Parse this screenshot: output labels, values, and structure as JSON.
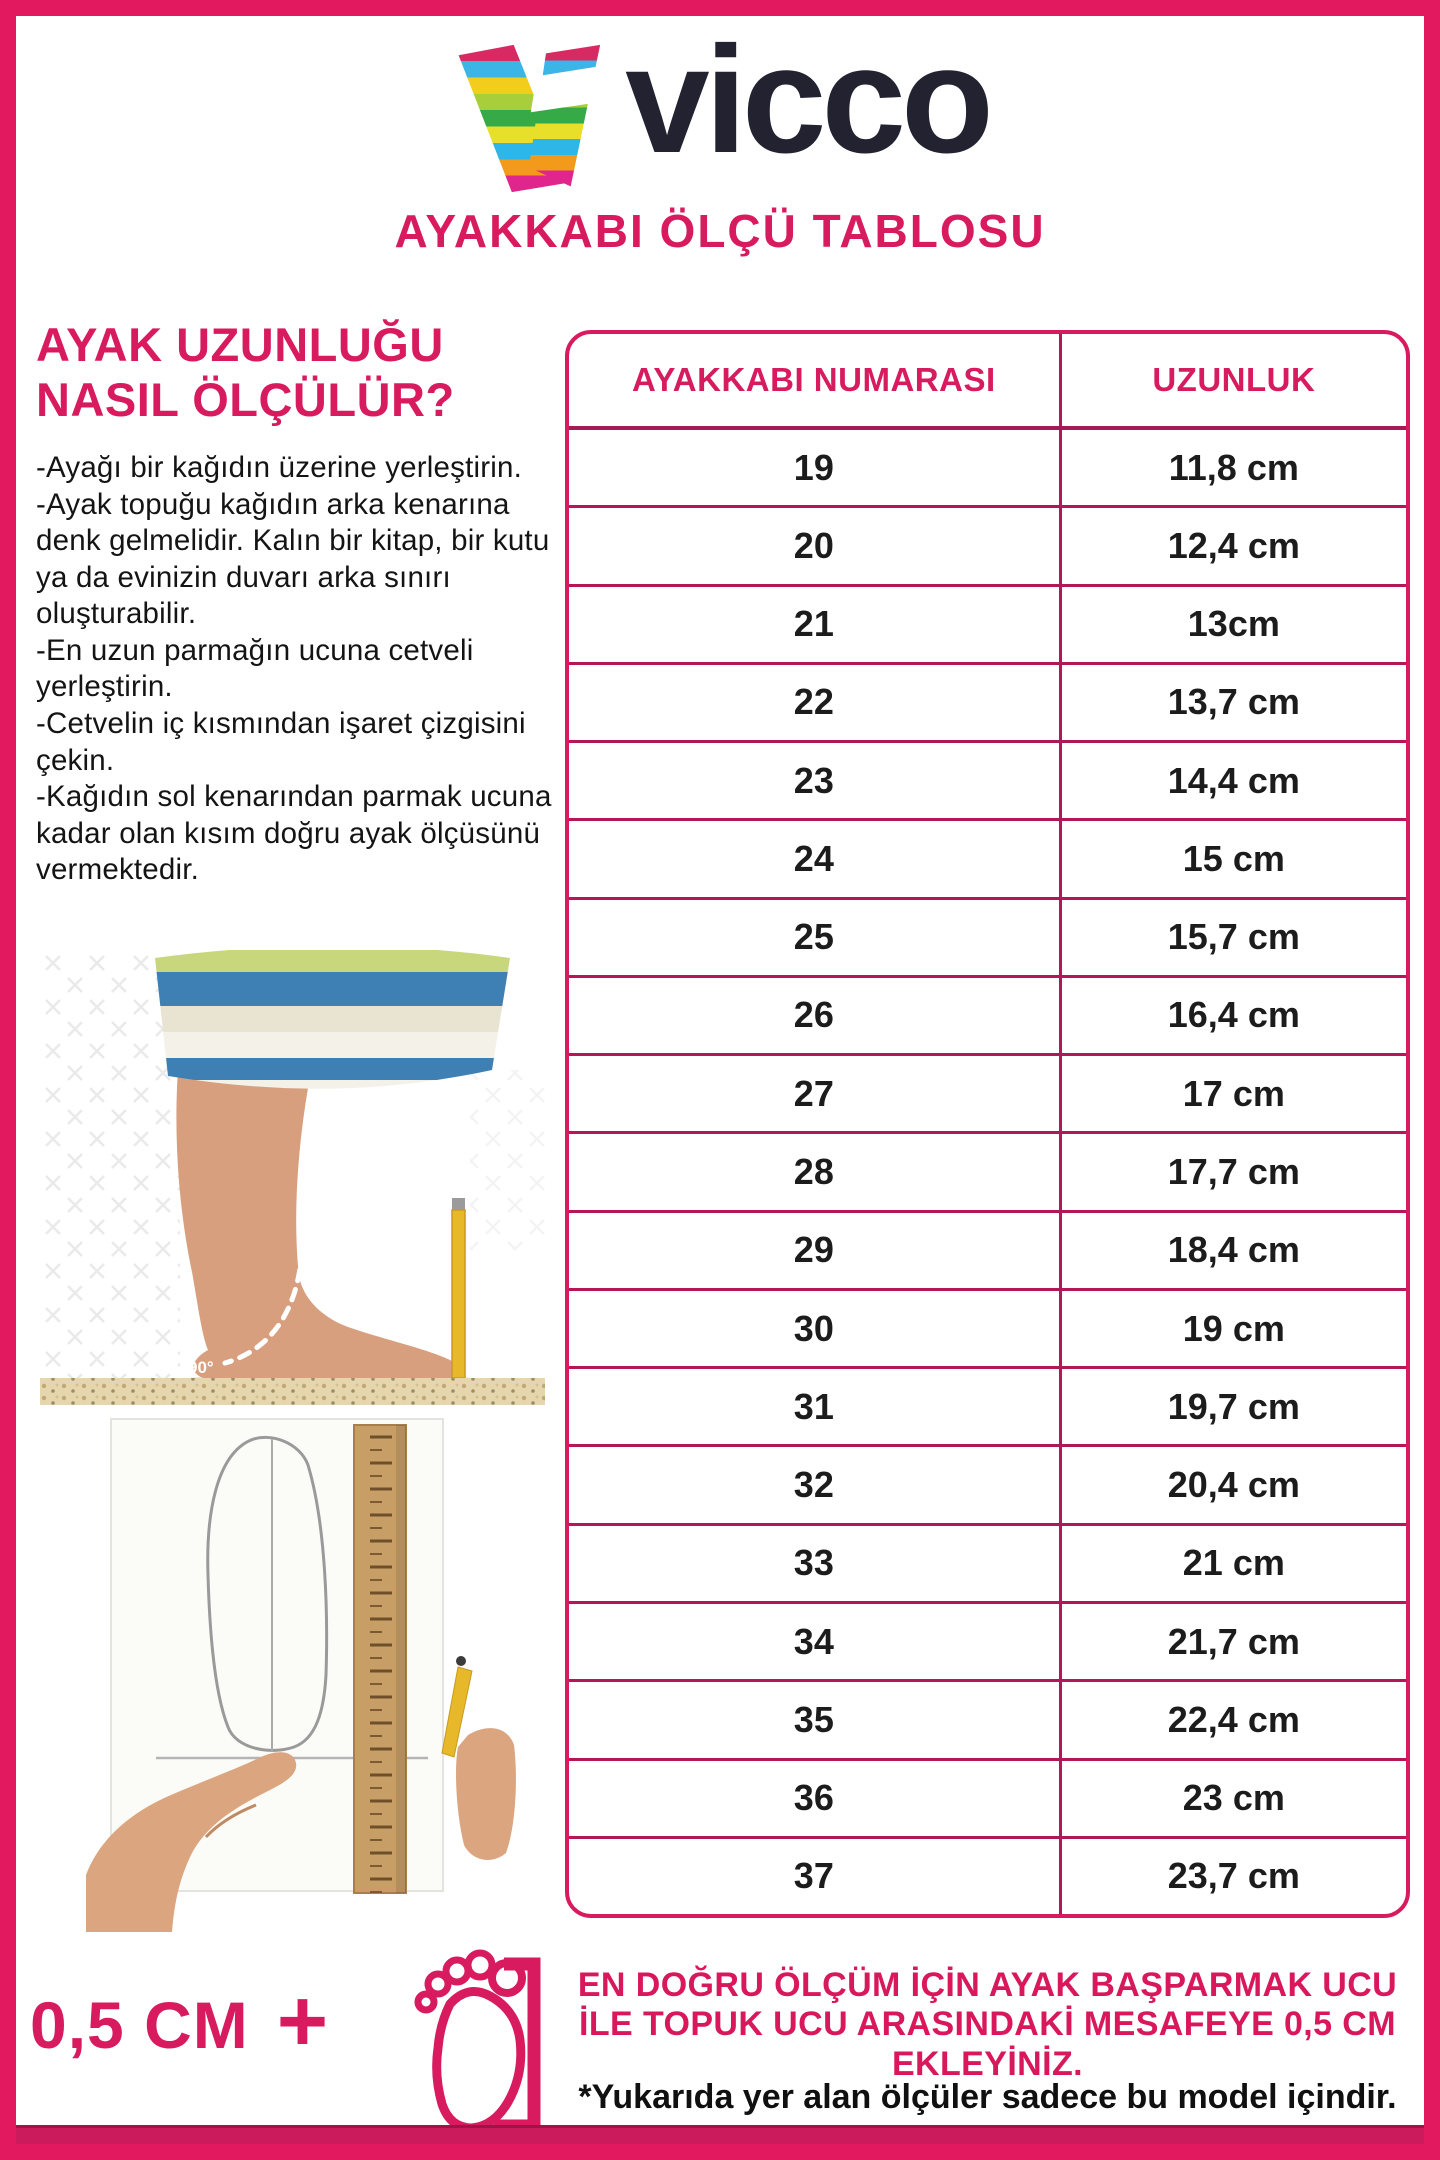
{
  "colors": {
    "accent": "#d81b5e",
    "frame": "#e2195f",
    "bottom_bar": "#cc1b5c",
    "text_ink": "#141414",
    "logo_ink": "#232230"
  },
  "header": {
    "brand": "vicco",
    "logo_icon": "vicco-v-logo",
    "subtitle": "AYAKKABI ÖLÇÜ TABLOSU"
  },
  "left": {
    "heading": "AYAK UZUNLUĞU NASIL ÖLÇÜLÜR?",
    "instructions": [
      "-Ayağı bir kağıdın üzerine yerleştirin.",
      "-Ayak topuğu kağıdın arka kenarına denk gelmelidir. Kalın bir kitap, bir kutu ya da evinizin duvarı arka sınırı oluşturabilir.",
      "-En uzun parmağın ucuna cetveli yerleştirin.",
      "-Cetvelin iç kısmından işaret çizgisini çekin.",
      "-Kağıdın sol kenarından parmak ucuna kadar olan kısım doğru ayak ölçüsünü vermektedir."
    ],
    "angle_label": "90°"
  },
  "table": {
    "headers": [
      "AYAKKABI NUMARASI",
      "UZUNLUK"
    ],
    "rows": [
      [
        "19",
        "11,8 cm"
      ],
      [
        "20",
        "12,4 cm"
      ],
      [
        "21",
        "13cm"
      ],
      [
        "22",
        "13,7 cm"
      ],
      [
        "23",
        "14,4 cm"
      ],
      [
        "24",
        "15 cm"
      ],
      [
        "25",
        "15,7 cm"
      ],
      [
        "26",
        "16,4 cm"
      ],
      [
        "27",
        "17 cm"
      ],
      [
        "28",
        "17,7 cm"
      ],
      [
        "29",
        "18,4 cm"
      ],
      [
        "30",
        "19 cm"
      ],
      [
        "31",
        "19,7 cm"
      ],
      [
        "32",
        "20,4 cm"
      ],
      [
        "33",
        "21 cm"
      ],
      [
        "34",
        "21,7 cm"
      ],
      [
        "35",
        "22,4 cm"
      ],
      [
        "36",
        "23 cm"
      ],
      [
        "37",
        "23,7 cm"
      ]
    ]
  },
  "footer": {
    "add_value": "0,5 CM",
    "plus_sign": "+",
    "foot_icon": "baby-foot-wall-icon",
    "note_lines": [
      "EN DOĞRU ÖLÇÜM İÇİN AYAK BAŞPARMAK UCU",
      "İLE TOPUK UCU ARASINDAKİ MESAFEYE 0,5 CM",
      "EKLEYİNİZ."
    ],
    "disclaimer": "*Yukarıda yer alan ölçüler sadece bu model içindir."
  }
}
